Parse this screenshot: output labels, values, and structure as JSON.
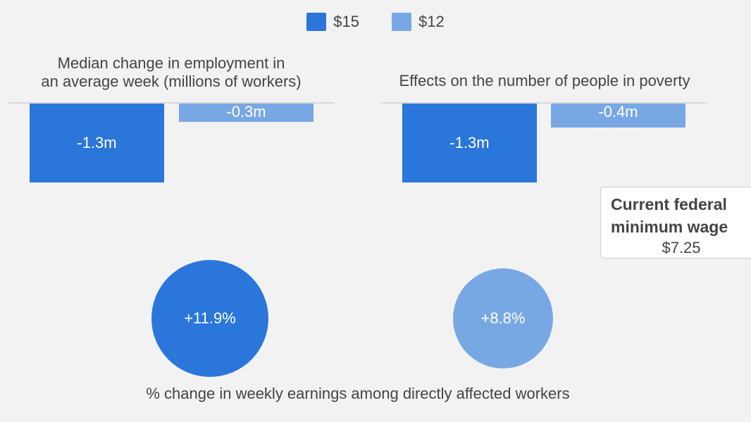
{
  "colors": {
    "series_15": "#2a76db",
    "series_12": "#78a8e4"
  },
  "legend": {
    "items": [
      {
        "label": "$15"
      },
      {
        "label": "$12"
      }
    ]
  },
  "panels": {
    "employment_title_line1": "Median change in employment in",
    "employment_title_line2": "an average week (millions of workers)",
    "poverty_title": "Effects on the number of people in poverty",
    "earnings_label": "% change in weekly earnings among directly affected workers"
  },
  "callout": {
    "heading": "Current federal minimum wage",
    "value": "$7.25"
  },
  "chart_data": [
    {
      "type": "bar",
      "title": "Median change in employment in an average week (millions of workers)",
      "categories": [
        "$15",
        "$12"
      ],
      "values": [
        -1.3,
        -0.3
      ],
      "data_labels": [
        "-1.3m",
        "-0.3m"
      ],
      "ylim": [
        -1.3,
        0
      ]
    },
    {
      "type": "bar",
      "title": "Effects on the number of people in poverty",
      "categories": [
        "$15",
        "$12"
      ],
      "values": [
        -1.3,
        -0.4
      ],
      "data_labels": [
        "-1.3m",
        "-0.4m"
      ],
      "ylim": [
        -1.3,
        0
      ]
    },
    {
      "type": "scatter",
      "title": "% change in weekly earnings among directly affected workers",
      "categories": [
        "$15",
        "$12"
      ],
      "values": [
        11.9,
        8.8
      ],
      "data_labels": [
        "+11.9%",
        "+8.8%"
      ]
    }
  ]
}
